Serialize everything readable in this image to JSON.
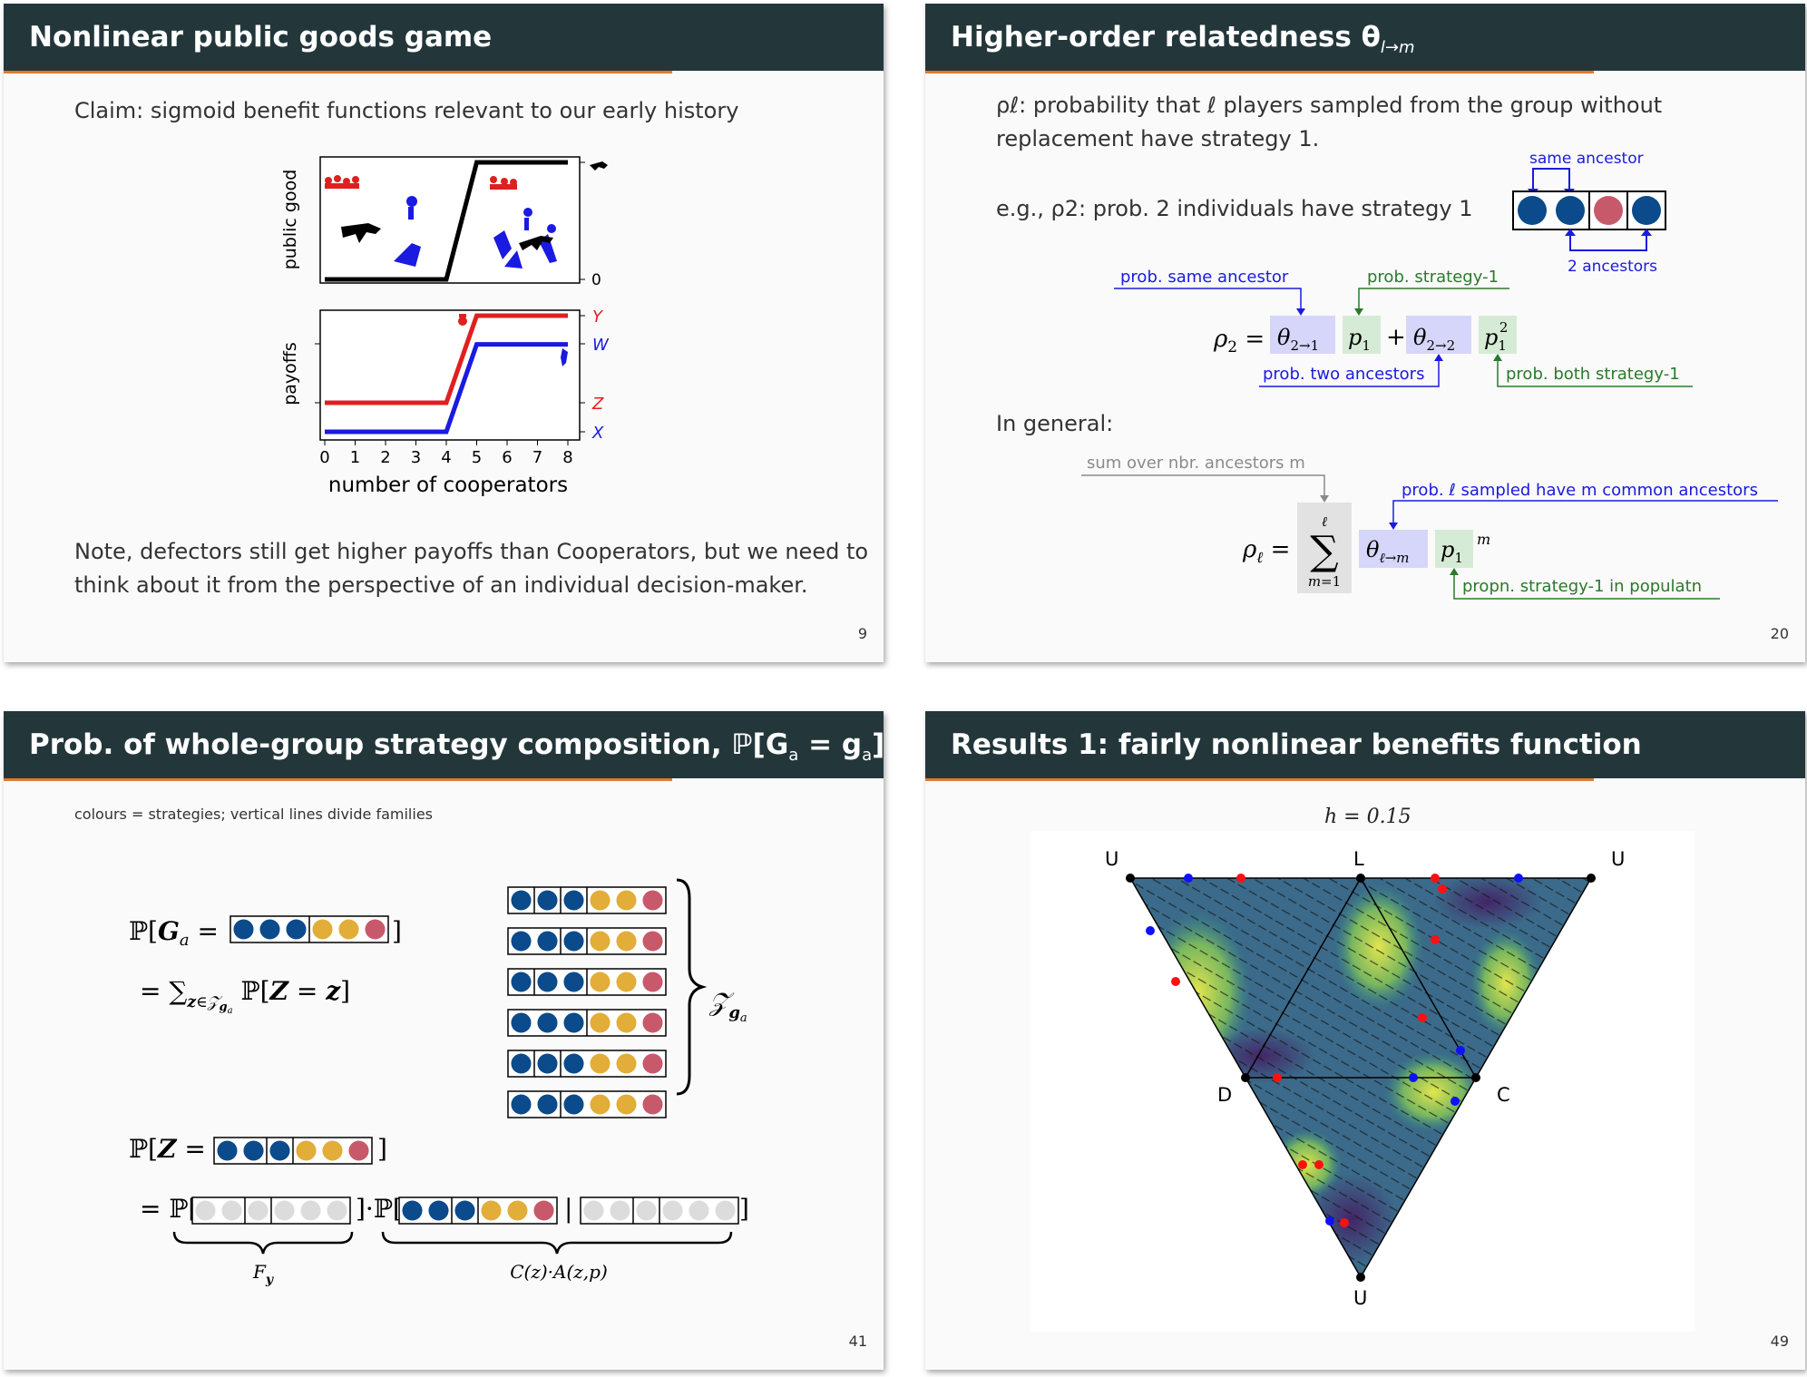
{
  "slides": [
    {
      "title": "Nonlinear public goods game",
      "page": "9",
      "claim": "Claim: sigmoid benefit functions relevant to our early history",
      "note_line1": "Note, defectors still get higher payoffs than Cooperators, but we need to",
      "note_line2": "think about it from the perspective of an individual decision-maker.",
      "top_plot": {
        "ylabel": "public good",
        "right_tick": "0"
      },
      "bottom_plot": {
        "ylabel": "payoffs",
        "right_labels": [
          "Y",
          "W",
          "Z",
          "X"
        ]
      },
      "xlabel": "number of cooperators",
      "xticks": [
        "0",
        "1",
        "2",
        "3",
        "4",
        "5",
        "6",
        "7",
        "8"
      ]
    },
    {
      "title": "Higher-order relatedness θ",
      "title_sub": "l→m",
      "page": "20",
      "line1": "ρℓ: probability that ℓ players sampled from the group without",
      "line2": "replacement have strategy 1.",
      "example": "e.g., ρ2: prob. 2 individuals have strategy 1",
      "same_ancestor": "same ancestor",
      "two_ancestors": "2 ancestors",
      "ann_same": "prob. same ancestor",
      "ann_strategy": "prob. strategy-1",
      "ann_two": "prob. two ancestors",
      "ann_both": "prob. both strategy-1",
      "in_general": "In general:",
      "ann_sum": "sum over nbr. ancestors m",
      "ann_sampled": "prob. ℓ sampled have m common ancestors",
      "ann_propn": "propn. strategy-1 in populatn"
    },
    {
      "title": "Prob. of whole-group strategy composition, ℙ[G",
      "title_sub": "a",
      "title_mid": " = g",
      "title_sub2": "a",
      "title_end": "] =?",
      "page": "41",
      "caption": "colours = strategies; vertical lines divide families",
      "label_Fy": "F",
      "label_Fy_sub": "y",
      "label_CA": "C(z)·A(z,p)",
      "label_Z": "Z"
    },
    {
      "title": "Results 1: fairly nonlinear benefits function",
      "page": "49",
      "h_label": "h = 0.15",
      "vertices": [
        "U",
        "L",
        "U",
        "D",
        "C",
        "U"
      ]
    }
  ],
  "colors": {
    "header": "#23373b",
    "accent": "#e07a2e",
    "blue_strategy": "#0b4a8b",
    "yellow_strategy": "#e2ad38",
    "red_strategy": "#c8596b",
    "grey_strategy": "#dcdcdc",
    "ann_blue": "#1a1ad6",
    "ann_green": "#2a7a2a",
    "ann_grey": "#8a8a8a",
    "box_blue": "#d6d6fb",
    "box_green": "#d6ebd6"
  },
  "chart_data": {
    "type": "line",
    "title": "",
    "xlabel": "number of cooperators",
    "x": [
      0,
      1,
      2,
      3,
      4,
      5,
      6,
      7,
      8
    ],
    "panels": [
      {
        "ylabel": "public good",
        "series": [
          {
            "values": [
              0,
              0,
              0,
              0,
              0,
              1,
              1,
              1,
              1
            ]
          }
        ]
      },
      {
        "ylabel": "payoffs",
        "series": [
          {
            "name": "Y/Z",
            "color": "red",
            "values": [
              0.25,
              0.25,
              0.25,
              0.25,
              0.25,
              1,
              1,
              1,
              1
            ]
          },
          {
            "name": "W/X",
            "color": "blue",
            "values": [
              0,
              0,
              0,
              0,
              0,
              0.75,
              0.75,
              0.75,
              0.75
            ]
          }
        ]
      }
    ]
  }
}
